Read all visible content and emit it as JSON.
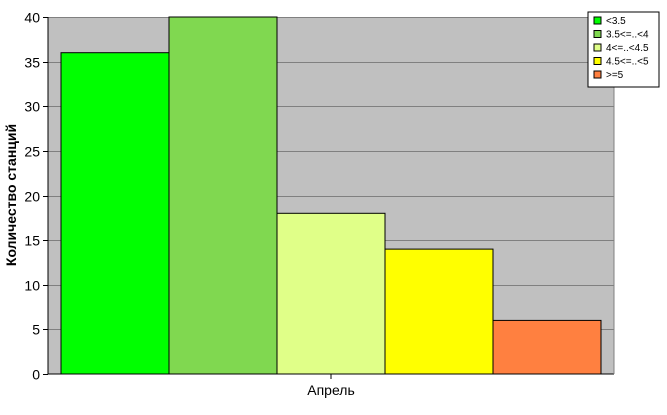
{
  "chart_data": {
    "type": "bar",
    "categories": [
      "Апрель"
    ],
    "series": [
      {
        "name": "<3.5",
        "values": [
          36
        ],
        "color": "#00ff00"
      },
      {
        "name": "3.5<=..<4",
        "values": [
          40
        ],
        "color": "#80d850"
      },
      {
        "name": "4<=..<4.5",
        "values": [
          18
        ],
        "color": "#e0ff88"
      },
      {
        "name": "4.5<=..<5",
        "values": [
          14
        ],
        "color": "#ffff00"
      },
      {
        "name": ">=5",
        "values": [
          6
        ],
        "color": "#ff8040"
      }
    ],
    "ylabel": "Количество станций",
    "xlabel": "",
    "ylim": [
      0,
      40
    ],
    "yticks": [
      0,
      5,
      10,
      15,
      20,
      25,
      30,
      35,
      40
    ],
    "grid": true,
    "plot_background": "#c0c0c0",
    "legend_position": "top-right"
  }
}
